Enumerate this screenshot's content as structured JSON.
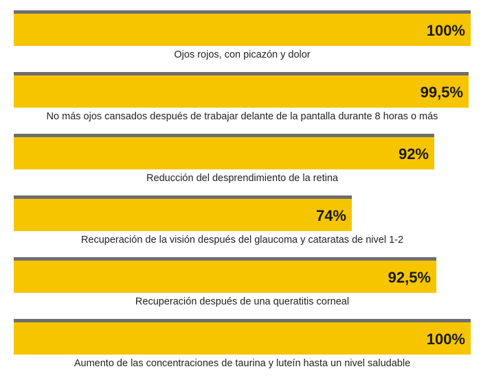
{
  "chart_data": {
    "type": "bar",
    "orientation": "horizontal",
    "categories": [
      "Ojos rojos, con picazón y dolor",
      "No más ojos cansados después de trabajar delante de la pantalla durante 8 horas o más",
      "Reducción del desprendimiento de la retina",
      "Recuperación de la visión después del glaucoma y cataratas de nivel 1-2",
      "Recuperación después de una queratitis corneal",
      "Aumento de las concentraciones de taurina y luteín hasta un nivel saludable"
    ],
    "values": [
      100,
      99.5,
      92,
      74,
      92.5,
      100
    ],
    "value_labels": [
      "100%",
      "99,5%",
      "92%",
      "74%",
      "92,5%",
      "100%"
    ],
    "xlim": [
      0,
      100
    ],
    "bar_color": "#f6c500",
    "bar_top_border_color": "#6e6e6e",
    "grid": false,
    "legend": "none"
  }
}
